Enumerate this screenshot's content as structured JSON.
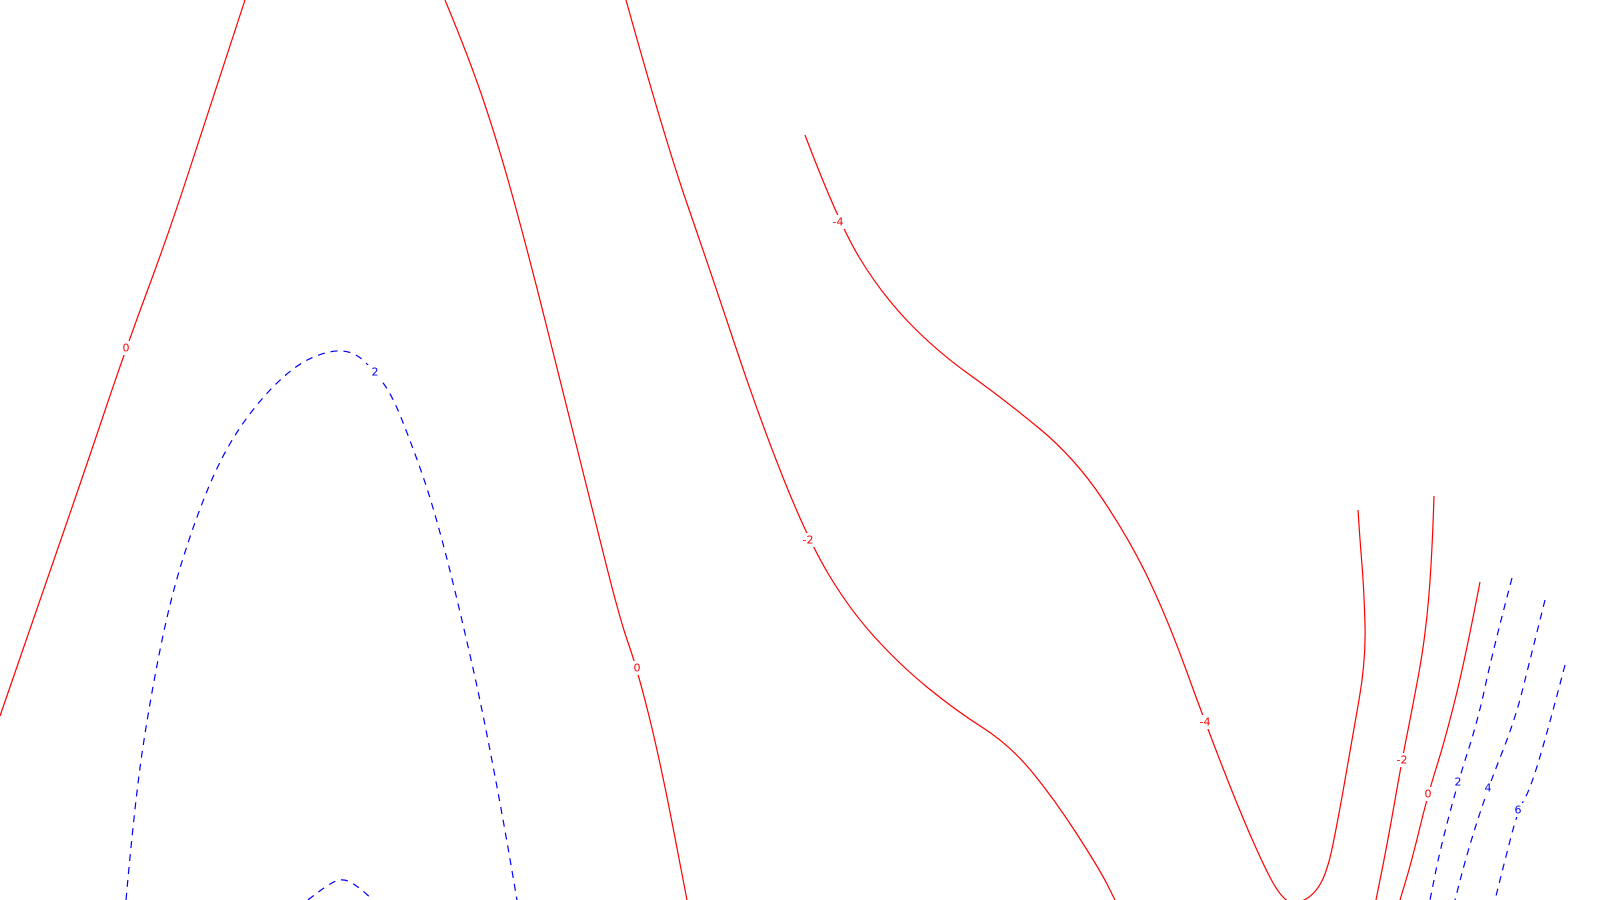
{
  "chart_data": {
    "type": "contour",
    "title": "",
    "xlabel": "",
    "ylabel": "",
    "axes_visible": false,
    "grid": false,
    "legend": "none",
    "colors": {
      "positive": "#0000ff",
      "zero_or_negative": "#ff0000"
    },
    "line_styles": {
      "positive": "dashed",
      "zero_or_negative": "solid"
    },
    "contour_levels": [
      -4,
      -2,
      0,
      2,
      4,
      6
    ],
    "contours": [
      {
        "level": 0,
        "label": "0",
        "label_count": 1
      },
      {
        "level": 0,
        "label": "0",
        "label_count": 1
      },
      {
        "level": -2,
        "label": "-2",
        "label_count": 1
      },
      {
        "level": -4,
        "label": "-4",
        "label_count": 2
      },
      {
        "level": -2,
        "label": "-2",
        "label_count": 1
      },
      {
        "level": 0,
        "label": "0",
        "label_count": 1
      },
      {
        "level": 2,
        "label": "2",
        "label_count": 1
      },
      {
        "level": 2,
        "label": "2",
        "label_count": 1
      },
      {
        "level": 2,
        "label": "2",
        "label_count": 0
      },
      {
        "level": 4,
        "label": "4",
        "label_count": 1
      },
      {
        "level": 6,
        "label": "6",
        "label_count": 1
      }
    ]
  }
}
